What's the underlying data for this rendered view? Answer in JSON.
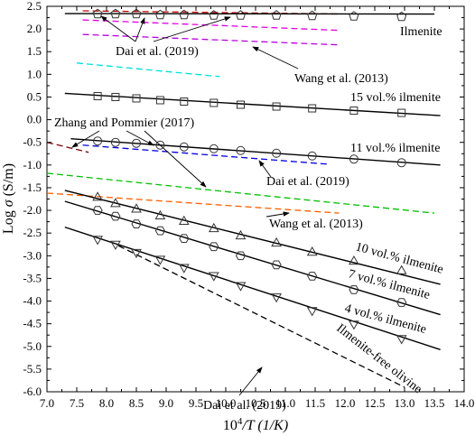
{
  "chart_data": {
    "type": "scatter",
    "xlabel_main": "10",
    "xlabel_sup": "4",
    "xlabel_rest": "/T (1/K)",
    "ylabel_main": "Log ",
    "ylabel_sigma": "σ",
    "ylabel_rest": " (S/m)",
    "xlim": [
      7.0,
      14.0
    ],
    "ylim": [
      -6.0,
      2.5
    ],
    "xticks": [
      "7.0",
      "7.5",
      "8.0",
      "8.5",
      "9.0",
      "9.5",
      "10.0",
      "10.5",
      "11.0",
      "11.5",
      "12.0",
      "12.5",
      "13.0",
      "13.5",
      "14.0"
    ],
    "yticks": [
      "-6.0",
      "-5.5",
      "-5.0",
      "-4.5",
      "-4.0",
      "-3.5",
      "-3.0",
      "-2.5",
      "-2.0",
      "-1.5",
      "-1.0",
      "-0.5",
      "0.0",
      "0.5",
      "1.0",
      "1.5",
      "2.0",
      "2.5"
    ],
    "grid": false,
    "series": [
      {
        "name": "Ilmenite",
        "marker": "pentagon",
        "x": [
          7.85,
          8.15,
          8.5,
          8.9,
          9.3,
          9.8,
          10.25,
          10.85,
          11.45,
          12.15,
          12.95
        ],
        "y": [
          2.33,
          2.33,
          2.33,
          2.31,
          2.31,
          2.3,
          2.3,
          2.3,
          2.29,
          2.28,
          2.27
        ],
        "fit": [
          [
            7.3,
            2.34
          ],
          [
            13.5,
            2.33
          ]
        ]
      },
      {
        "name": "15 vol.% ilmenite",
        "marker": "square",
        "x": [
          7.85,
          8.15,
          8.5,
          8.9,
          9.3,
          9.8,
          10.25,
          10.85,
          11.45,
          12.15,
          12.95
        ],
        "y": [
          0.52,
          0.5,
          0.47,
          0.43,
          0.4,
          0.37,
          0.33,
          0.29,
          0.25,
          0.2,
          0.15
        ],
        "fit": [
          [
            7.3,
            0.58
          ],
          [
            13.6,
            0.09
          ]
        ]
      },
      {
        "name": "11 vol.% ilmenite",
        "marker": "circle",
        "x": [
          7.85,
          8.15,
          8.5,
          8.9,
          9.3,
          9.8,
          10.25,
          10.85,
          11.45,
          12.15,
          12.95
        ],
        "y": [
          -0.47,
          -0.5,
          -0.52,
          -0.56,
          -0.6,
          -0.64,
          -0.68,
          -0.74,
          -0.8,
          -0.87,
          -0.95
        ],
        "fit": [
          [
            7.4,
            -0.42
          ],
          [
            13.6,
            -1.0
          ]
        ]
      },
      {
        "name": "10 vol.% ilmenite",
        "marker": "triangle-up",
        "x": [
          7.85,
          8.15,
          8.5,
          8.9,
          9.3,
          9.8,
          10.25,
          10.85,
          11.45,
          12.15,
          12.95
        ],
        "y": [
          -1.72,
          -1.86,
          -1.98,
          -2.13,
          -2.25,
          -2.41,
          -2.57,
          -2.73,
          -2.93,
          -3.13,
          -3.34
        ],
        "fit": [
          [
            7.3,
            -1.56
          ],
          [
            13.6,
            -3.63
          ]
        ]
      },
      {
        "name": "7 vol.% ilmenite",
        "marker": "hexagon",
        "x": [
          7.85,
          8.15,
          8.5,
          8.9,
          9.3,
          9.8,
          10.25,
          10.85,
          11.45,
          12.15,
          12.95
        ],
        "y": [
          -2.0,
          -2.13,
          -2.3,
          -2.45,
          -2.62,
          -2.8,
          -3.0,
          -3.2,
          -3.45,
          -3.75,
          -4.03
        ],
        "fit": [
          [
            7.3,
            -1.8
          ],
          [
            13.6,
            -4.3
          ]
        ]
      },
      {
        "name": "4 vol.% ilmenite",
        "marker": "triangle-down",
        "x": [
          7.85,
          8.15,
          8.5,
          8.9,
          9.3,
          9.8,
          10.25,
          10.85,
          11.45,
          12.15,
          12.95
        ],
        "y": [
          -2.63,
          -2.74,
          -2.92,
          -3.07,
          -3.25,
          -3.43,
          -3.65,
          -3.9,
          -4.2,
          -4.5,
          -4.82
        ],
        "fit": [
          [
            7.3,
            -2.37
          ],
          [
            13.6,
            -5.07
          ]
        ]
      }
    ],
    "reference_lines": [
      {
        "color": "#c00000",
        "x": [
          7.6,
          11.9
        ],
        "y": [
          2.4,
          2.33
        ]
      },
      {
        "color": "#e000e0",
        "x": [
          7.6,
          11.9
        ],
        "y": [
          2.2,
          1.97
        ]
      },
      {
        "color": "#b800e0",
        "x": [
          7.6,
          11.9
        ],
        "y": [
          1.88,
          1.65
        ]
      },
      {
        "color": "#00e0e0",
        "x": [
          7.5,
          9.9
        ],
        "y": [
          1.25,
          0.95
        ]
      },
      {
        "color": "#800000",
        "x": [
          7.0,
          7.7
        ],
        "y": [
          -0.5,
          -0.72
        ]
      },
      {
        "color": "#0000e0",
        "x": [
          7.6,
          11.7
        ],
        "y": [
          -0.56,
          -0.98
        ]
      },
      {
        "color": "#00c000",
        "x": [
          7.0,
          13.5
        ],
        "y": [
          -1.18,
          -2.06
        ]
      },
      {
        "color": "#ff6000",
        "x": [
          7.0,
          11.9
        ],
        "y": [
          -1.62,
          -2.06
        ]
      },
      {
        "color": "#000000",
        "x": [
          8.2,
          13.0
        ],
        "y": [
          -2.78,
          -5.9
        ]
      }
    ],
    "annotations": [
      {
        "text": "Ilmenite",
        "anchor": "r1",
        "rotate": 0
      },
      {
        "text": "Dai et al. (2019)",
        "anchor": "r2",
        "rotate": 0
      },
      {
        "text": "Wang et al. (2013)",
        "anchor": "r3",
        "rotate": 0
      },
      {
        "text": "15 vol.% ilmenite",
        "anchor": "r4",
        "rotate": 0
      },
      {
        "text": "Zhang and Pommier (2017)",
        "anchor": "r5",
        "rotate": 0
      },
      {
        "text": "11 vol.% ilmenite",
        "anchor": "r6",
        "rotate": 0
      },
      {
        "text": "Dai et al. (2019)",
        "anchor": "r7",
        "rotate": 0
      },
      {
        "text": "Wang et al. (2013)",
        "anchor": "r8",
        "rotate": 0
      },
      {
        "text": "10 vol.% ilmenite",
        "anchor": "r9",
        "rotate": 15
      },
      {
        "text": "7 vol.% ilmenite",
        "anchor": "r10",
        "rotate": 15
      },
      {
        "text": "4 vol.% ilmenite",
        "anchor": "r11",
        "rotate": 15
      },
      {
        "text": "Ilmenite-free olivine",
        "anchor": "r12",
        "rotate": 38
      },
      {
        "text": "Dai et al. (2019)",
        "anchor": "r13",
        "rotate": 0
      }
    ]
  }
}
